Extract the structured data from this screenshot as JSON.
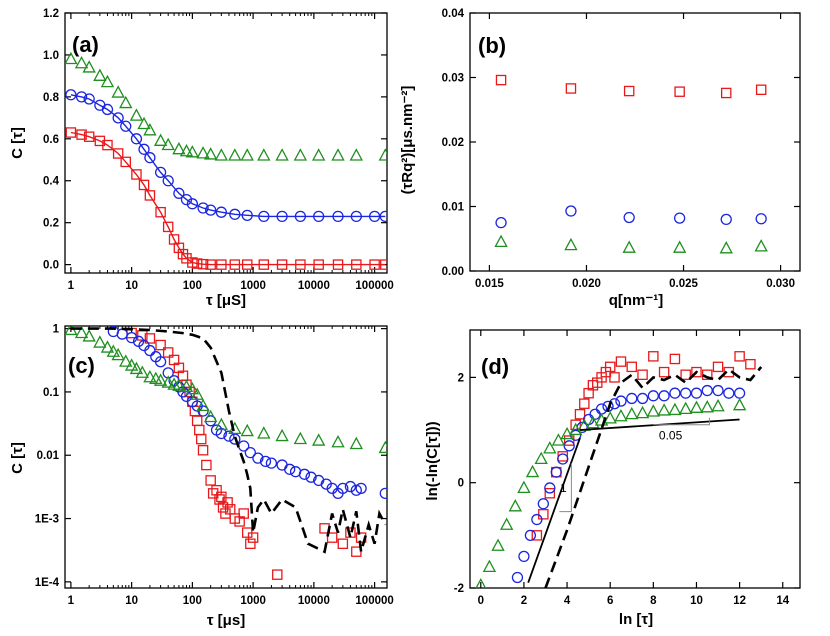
{
  "colors": {
    "red": "#e8191b",
    "blue": "#1b26e0",
    "green": "#1f8f1f",
    "black": "#000000"
  },
  "chart_data": [
    {
      "panel": "(a)",
      "type": "scatter",
      "xlabel": "τ [μS]",
      "ylabel": "C [τ]",
      "xscale": "log",
      "xlim": [
        0.8,
        160000
      ],
      "ylim": [
        -0.04,
        1.2
      ],
      "xticks": [
        1,
        10,
        100,
        1000,
        10000,
        100000
      ],
      "xtick_labels": [
        "1",
        "10",
        "100",
        "1000",
        "10000",
        "100000"
      ],
      "yticks": [
        0.0,
        0.2,
        0.4,
        0.6,
        0.8,
        1.0,
        1.2
      ],
      "ytick_labels": [
        "0.0",
        "0.2",
        "0.4",
        "0.6",
        "0.8",
        "1.0",
        "1.2"
      ],
      "series": [
        {
          "color": "red",
          "marker": "square",
          "line": true,
          "x": [
            1,
            1.5,
            2,
            3,
            4,
            6,
            8,
            12,
            16,
            20,
            30,
            40,
            50,
            60,
            70,
            80,
            100,
            120,
            150,
            200,
            300,
            500,
            800,
            1500,
            3000,
            6000,
            12000,
            25000,
            50000,
            100000,
            150000
          ],
          "y": [
            0.63,
            0.62,
            0.61,
            0.59,
            0.57,
            0.53,
            0.49,
            0.43,
            0.38,
            0.33,
            0.25,
            0.18,
            0.12,
            0.08,
            0.05,
            0.03,
            0.01,
            0.005,
            0.002,
            0.0,
            0.0,
            0.0,
            0.0,
            0.0,
            0.0,
            0.0,
            0.0,
            0.0,
            0.0,
            0.0,
            0.0
          ]
        },
        {
          "color": "blue",
          "marker": "circle",
          "line": true,
          "x": [
            1,
            1.5,
            2,
            3,
            4,
            6,
            8,
            12,
            16,
            20,
            30,
            40,
            60,
            80,
            100,
            150,
            200,
            300,
            500,
            800,
            1500,
            3000,
            6000,
            12000,
            25000,
            50000,
            100000,
            150000
          ],
          "y": [
            0.81,
            0.8,
            0.79,
            0.76,
            0.74,
            0.7,
            0.66,
            0.6,
            0.55,
            0.51,
            0.44,
            0.4,
            0.34,
            0.31,
            0.29,
            0.27,
            0.26,
            0.25,
            0.24,
            0.235,
            0.23,
            0.23,
            0.23,
            0.23,
            0.23,
            0.23,
            0.23,
            0.23
          ]
        },
        {
          "color": "green",
          "marker": "triangle",
          "line": false,
          "x": [
            1,
            1.5,
            2,
            3,
            4,
            6,
            8,
            12,
            16,
            20,
            30,
            40,
            60,
            80,
            100,
            150,
            200,
            300,
            500,
            800,
            1500,
            3000,
            6000,
            12000,
            25000,
            50000,
            150000
          ],
          "y": [
            0.98,
            0.96,
            0.94,
            0.9,
            0.87,
            0.82,
            0.77,
            0.71,
            0.67,
            0.64,
            0.59,
            0.57,
            0.55,
            0.54,
            0.535,
            0.53,
            0.525,
            0.52,
            0.52,
            0.52,
            0.52,
            0.52,
            0.52,
            0.52,
            0.52,
            0.52,
            0.52
          ]
        }
      ]
    },
    {
      "panel": "(b)",
      "type": "scatter",
      "xlabel": "q[nm⁻¹]",
      "ylabel": "(τRq²)[μs.nm⁻²]",
      "xlim": [
        0.014,
        0.031
      ],
      "ylim": [
        0.0,
        0.04
      ],
      "xticks": [
        0.015,
        0.02,
        0.025,
        0.03
      ],
      "xtick_labels": [
        "0.015",
        "0.020",
        "0.025",
        "0.030"
      ],
      "yticks": [
        0.0,
        0.01,
        0.02,
        0.03,
        0.04
      ],
      "ytick_labels": [
        "0.00",
        "0.01",
        "0.02",
        "0.03",
        "0.04"
      ],
      "series": [
        {
          "color": "red",
          "marker": "square",
          "x": [
            0.0156,
            0.0192,
            0.0222,
            0.0248,
            0.0272,
            0.029
          ],
          "y": [
            0.0296,
            0.0283,
            0.0279,
            0.0278,
            0.0276,
            0.0281
          ]
        },
        {
          "color": "blue",
          "marker": "circle",
          "x": [
            0.0156,
            0.0192,
            0.0222,
            0.0248,
            0.0272,
            0.029
          ],
          "y": [
            0.0075,
            0.0093,
            0.0083,
            0.0082,
            0.008,
            0.0081
          ]
        },
        {
          "color": "green",
          "marker": "triangle",
          "x": [
            0.0156,
            0.0192,
            0.0222,
            0.0248,
            0.0272,
            0.029
          ],
          "y": [
            0.0045,
            0.004,
            0.0036,
            0.0036,
            0.0035,
            0.0038
          ]
        }
      ]
    },
    {
      "panel": "(c)",
      "type": "scatter",
      "xlabel": "τ [μs]",
      "ylabel": "C [τ]",
      "xscale": "log",
      "yscale": "log",
      "xlim": [
        0.8,
        160000
      ],
      "ylim": [
        8e-05,
        1.1
      ],
      "xticks": [
        1,
        10,
        100,
        1000,
        10000,
        100000
      ],
      "xtick_labels": [
        "1",
        "10",
        "100",
        "1000",
        "10000",
        "100000"
      ],
      "yticks": [
        0.0001,
        0.001,
        0.01,
        0.1,
        1
      ],
      "ytick_labels": [
        "1E-4",
        "1E-3",
        "0.01",
        "0.1",
        "1"
      ],
      "series": [
        {
          "color": "red",
          "marker": "square",
          "x": [
            10,
            15,
            20,
            30,
            40,
            50,
            60,
            70,
            80,
            90,
            100,
            110,
            120,
            130,
            140,
            150,
            170,
            200,
            220,
            250,
            280,
            300,
            320,
            350,
            380,
            420,
            500,
            600,
            700,
            800,
            900,
            1000,
            2500,
            15000,
            20000,
            30000,
            40000,
            50000,
            60000
          ],
          "y": [
            0.85,
            0.78,
            0.7,
            0.55,
            0.42,
            0.32,
            0.24,
            0.18,
            0.13,
            0.1,
            0.07,
            0.05,
            0.035,
            0.025,
            0.018,
            0.012,
            0.007,
            0.004,
            0.0025,
            0.0028,
            0.002,
            0.0022,
            0.0015,
            0.0012,
            0.0018,
            0.0014,
            0.001,
            0.0009,
            0.0012,
            0.0006,
            0.0004,
            0.0005,
            0.00013,
            0.0007,
            0.0005,
            0.0004,
            0.0006,
            0.0003,
            0.0005
          ]
        },
        {
          "color": "blue",
          "marker": "circle",
          "x": [
            5,
            7,
            10,
            13,
            16,
            20,
            25,
            30,
            40,
            50,
            60,
            70,
            80,
            100,
            120,
            150,
            200,
            250,
            300,
            400,
            500,
            700,
            900,
            1200,
            1600,
            2000,
            3000,
            4000,
            5000,
            7000,
            9000,
            12000,
            16000,
            20000,
            25000,
            30000,
            40000,
            50000,
            60000,
            150000
          ],
          "y": [
            0.9,
            0.82,
            0.72,
            0.63,
            0.54,
            0.45,
            0.36,
            0.3,
            0.2,
            0.15,
            0.12,
            0.1,
            0.085,
            0.07,
            0.06,
            0.05,
            0.035,
            0.025,
            0.022,
            0.02,
            0.018,
            0.014,
            0.011,
            0.009,
            0.008,
            0.0075,
            0.007,
            0.006,
            0.0055,
            0.005,
            0.0045,
            0.004,
            0.0035,
            0.003,
            0.0025,
            0.003,
            0.0032,
            0.0028,
            0.003,
            0.0025
          ]
        },
        {
          "color": "green",
          "marker": "triangle",
          "x": [
            1,
            1.5,
            2,
            3,
            4,
            5,
            6,
            8,
            10,
            12,
            15,
            20,
            25,
            30,
            40,
            50,
            60,
            80,
            100,
            120,
            150,
            200,
            300,
            500,
            800,
            1500,
            3000,
            6000,
            12000,
            25000,
            50000,
            150000
          ],
          "y": [
            0.95,
            0.85,
            0.75,
            0.6,
            0.5,
            0.43,
            0.38,
            0.3,
            0.26,
            0.23,
            0.2,
            0.17,
            0.16,
            0.15,
            0.14,
            0.13,
            0.125,
            0.12,
            0.11,
            0.09,
            0.06,
            0.04,
            0.03,
            0.026,
            0.024,
            0.022,
            0.02,
            0.018,
            0.017,
            0.016,
            0.015,
            0.013
          ]
        },
        {
          "color": "black",
          "marker": "none",
          "dash": true,
          "x": [
            1,
            5,
            10,
            20,
            40,
            70,
            100,
            150,
            200,
            300,
            400,
            500,
            600,
            700,
            800,
            900,
            1000,
            1200,
            1500,
            2000,
            3000,
            5000,
            8000,
            15000,
            20000,
            25000,
            30000,
            40000,
            50000,
            60000,
            80000,
            100000,
            120000,
            150000
          ],
          "y": [
            1,
            1,
            0.98,
            0.95,
            0.9,
            0.85,
            0.8,
            0.7,
            0.5,
            0.2,
            0.05,
            0.02,
            0.012,
            0.008,
            0.005,
            0.003,
            0.0006,
            0.0015,
            0.002,
            0.0012,
            0.002,
            0.0015,
            0.0004,
            0.0003,
            0.0012,
            0.0006,
            0.0014,
            0.0005,
            0.0013,
            0.0003,
            0.0008,
            0.0004,
            0.0012,
            0.0008
          ]
        }
      ]
    },
    {
      "panel": "(d)",
      "type": "scatter",
      "xlabel": "ln [τ]",
      "ylabel": "ln(-ln(C[τ]))",
      "xlim": [
        -0.5,
        14.8
      ],
      "ylim": [
        -2,
        2.9
      ],
      "xticks": [
        0,
        2,
        4,
        6,
        8,
        10,
        12,
        14
      ],
      "xtick_labels": [
        "0",
        "2",
        "4",
        "6",
        "8",
        "10",
        "12",
        "14"
      ],
      "yticks": [
        -2,
        0,
        2
      ],
      "ytick_labels": [
        "-2",
        "0",
        "2"
      ],
      "annotations": [
        "1",
        "0.05"
      ],
      "series": [
        {
          "color": "red",
          "marker": "square",
          "x": [
            2.6,
            2.9,
            3.2,
            3.5,
            3.8,
            4.1,
            4.4,
            4.6,
            4.8,
            5.0,
            5.2,
            5.4,
            5.6,
            5.8,
            6.0,
            6.2,
            6.5,
            7.0,
            7.5,
            8.0,
            8.5,
            9.0,
            9.5,
            10.0,
            10.5,
            11.0,
            11.5,
            12.0,
            12.5
          ],
          "y": [
            -1.0,
            -0.6,
            -0.2,
            0.2,
            0.5,
            0.8,
            1.1,
            1.3,
            1.5,
            1.7,
            1.85,
            1.9,
            2.0,
            2.1,
            2.2,
            2.0,
            2.3,
            2.2,
            2.05,
            2.4,
            2.1,
            2.35,
            2.05,
            2.1,
            2.05,
            2.2,
            2.1,
            2.4,
            2.25
          ]
        },
        {
          "color": "blue",
          "marker": "circle",
          "x": [
            1.7,
            2.0,
            2.3,
            2.6,
            2.9,
            3.2,
            3.5,
            3.8,
            4.1,
            4.4,
            4.7,
            5.0,
            5.3,
            5.6,
            5.9,
            6.2,
            6.5,
            7.0,
            7.5,
            8.0,
            8.5,
            9.0,
            9.5,
            10.0,
            10.5,
            11.0,
            11.5,
            12.0
          ],
          "y": [
            -1.8,
            -1.4,
            -1.0,
            -0.7,
            -0.4,
            -0.1,
            0.2,
            0.45,
            0.7,
            0.9,
            1.05,
            1.2,
            1.3,
            1.4,
            1.45,
            1.5,
            1.55,
            1.6,
            1.6,
            1.65,
            1.65,
            1.7,
            1.7,
            1.7,
            1.75,
            1.75,
            1.7,
            1.7
          ]
        },
        {
          "color": "green",
          "marker": "triangle",
          "x": [
            0.0,
            0.4,
            0.8,
            1.2,
            1.6,
            2.0,
            2.4,
            2.8,
            3.2,
            3.6,
            4.0,
            4.4,
            4.8,
            5.2,
            5.6,
            6.0,
            6.5,
            7.0,
            7.5,
            8.0,
            8.5,
            9.0,
            9.5,
            10.0,
            10.5,
            11.0,
            12.0
          ],
          "y": [
            -1.95,
            -1.6,
            -1.2,
            -0.8,
            -0.45,
            -0.1,
            0.2,
            0.45,
            0.65,
            0.8,
            0.92,
            1.0,
            1.08,
            1.13,
            1.18,
            1.22,
            1.26,
            1.3,
            1.32,
            1.35,
            1.37,
            1.38,
            1.4,
            1.42,
            1.43,
            1.45,
            1.47
          ]
        },
        {
          "color": "black",
          "marker": "none",
          "dash": true,
          "x": [
            3.0,
            4.0,
            5.0,
            6.0,
            6.5,
            7.0,
            7.5,
            8.0,
            8.5,
            9.0,
            9.5,
            10.0,
            10.5,
            11.0,
            11.5,
            12.0,
            12.5,
            13.0
          ],
          "y": [
            -2.0,
            -0.9,
            0.3,
            1.5,
            1.9,
            2.05,
            1.8,
            2.0,
            1.95,
            2.05,
            1.9,
            2.1,
            2.0,
            1.95,
            2.15,
            2.0,
            1.95,
            2.2
          ]
        },
        {
          "color": "black",
          "marker": "none",
          "fit": true,
          "x": [
            2.2,
            4.6
          ],
          "y": [
            -1.9,
            0.85
          ]
        },
        {
          "color": "black",
          "marker": "none",
          "fit": true,
          "x": [
            4.6,
            12.0
          ],
          "y": [
            1.0,
            1.2
          ]
        }
      ]
    }
  ],
  "panels": [
    {
      "label": "(a)"
    },
    {
      "label": "(b)"
    },
    {
      "label": "(c)"
    },
    {
      "label": "(d)"
    }
  ]
}
